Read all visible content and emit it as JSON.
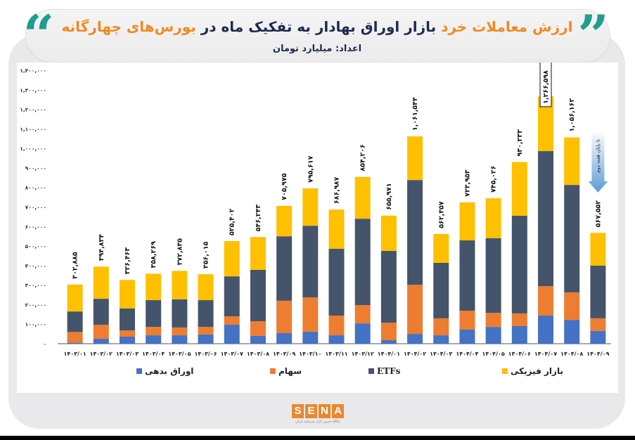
{
  "header": {
    "title_part1": "ارزش معاملات خرد",
    "title_part2": " بازار اوراق بهادار به تفکیک ماه در ",
    "title_part3": "بورس‌های چهارگانه",
    "subtitle": "اعداد: میلیارد تومان",
    "open_quote": "“",
    "close_quote": "”"
  },
  "logo": {
    "letters": [
      "S",
      "E",
      "N",
      "A"
    ],
    "tagline": "پایگاه خبری بازار سرمایه ایران"
  },
  "colors": {
    "debt": "#4472c4",
    "stocks": "#ed7d31",
    "etfs": "#44546a",
    "physical": "#ffc000",
    "teal": "#1f9e8e",
    "orange": "#ef8a22",
    "navy": "#1d2b4f"
  },
  "chart_data": {
    "type": "bar",
    "stacked": true,
    "title": "ارزش معاملات خرد بازار اوراق بهادار به تفکیک ماه در بورس‌های چهارگانه",
    "subtitle": "اعداد: میلیارد تومان",
    "xlabel": "",
    "ylabel": "",
    "ylim": [
      0,
      1400000
    ],
    "yticks": [
      0,
      100000,
      200000,
      300000,
      400000,
      500000,
      600000,
      700000,
      800000,
      900000,
      1000000,
      1100000,
      1200000,
      1300000,
      1400000
    ],
    "ytick_labels": [
      "۰",
      "۱۰۰,۰۰۰",
      "۲۰۰,۰۰۰",
      "۳۰۰,۰۰۰",
      "۴۰۰,۰۰۰",
      "۵۰۰,۰۰۰",
      "۶۰۰,۰۰۰",
      "۷۰۰,۰۰۰",
      "۸۰۰,۰۰۰",
      "۹۰۰,۰۰۰",
      "۱,۰۰۰,۰۰۰",
      "۱,۱۰۰,۰۰۰",
      "۱,۲۰۰,۰۰۰",
      "۱,۳۰۰,۰۰۰",
      "۱,۴۰۰,۰۰۰"
    ],
    "grid": false,
    "legend_position": "bottom",
    "categories": [
      "۱۴۰۳/۰۱",
      "۱۴۰۳/۰۲",
      "۱۴۰۳/۰۳",
      "۱۴۰۳/۰۴",
      "۱۴۰۳/۰۵",
      "۱۴۰۳/۰۶",
      "۱۴۰۳/۰۷",
      "۱۴۰۳/۰۸",
      "۱۴۰۳/۰۹",
      "۱۴۰۳/۱۰",
      "۱۴۰۳/۱۱",
      "۱۴۰۳/۱۲",
      "۱۴۰۴/۰۱",
      "۱۴۰۴/۰۲",
      "۱۴۰۴/۰۳",
      "۱۴۰۴/۰۴",
      "۱۴۰۴/۰۵",
      "۱۴۰۴/۰۶",
      "۱۴۰۴/۰۷",
      "۱۴۰۴/۰۸",
      "۱۴۰۴/۰۹"
    ],
    "series": [
      {
        "name": "اوراق بدهی",
        "key": "debt",
        "values": [
          5000,
          25000,
          36000,
          43000,
          43000,
          47000,
          97000,
          40000,
          54000,
          61000,
          43000,
          104000,
          18000,
          50000,
          43000,
          72000,
          86000,
          90000,
          144000,
          122000,
          65000
        ]
      },
      {
        "name": "سهام",
        "key": "stocks",
        "values": [
          55000,
          72000,
          32000,
          43000,
          40000,
          39000,
          43000,
          75000,
          166000,
          176000,
          101000,
          94000,
          90000,
          252000,
          87000,
          97000,
          72000,
          65000,
          151000,
          141000,
          65000
        ]
      },
      {
        "name": "ETFs",
        "key": "etfs",
        "values": [
          105000,
          133000,
          112000,
          137000,
          144000,
          137000,
          205000,
          263000,
          330000,
          367000,
          342000,
          442000,
          367000,
          536000,
          284000,
          360000,
          382000,
          500000,
          691000,
          550000,
          270000
        ]
      },
      {
        "name": "بازار فیزیکی",
        "key": "physical",
        "values": [
          137885,
          164834,
          146463,
          135269,
          145835,
          133015,
          180402,
          168243,
          155975,
          191617,
          200987,
          214206,
          180971,
          223544,
          148357,
          194953,
          205026,
          275233,
          280598,
          243162,
          167552
        ]
      }
    ],
    "totals": [
      302885,
      394834,
      326463,
      358269,
      372835,
      356015,
      525402,
      546243,
      705975,
      795617,
      686987,
      854206,
      655971,
      1061544,
      562357,
      723953,
      745026,
      930233,
      1266598,
      1056162,
      567552
    ],
    "total_labels": [
      "۳۰۲,۸۸۵",
      "۳۹۴,۸۳۴",
      "۳۲۶,۴۶۳",
      "۳۵۸,۲۶۹",
      "۳۷۲,۸۳۵",
      "۳۵۶,۰۱۵",
      "۵۲۵,۴۰۲",
      "۵۴۶,۲۴۳",
      "۷۰۵,۹۷۵",
      "۷۹۵,۶۱۷",
      "۶۸۶,۹۸۷",
      "۸۵۴,۲۰۶",
      "۶۵۵,۹۷۱",
      "۱,۰۶۱,۵۴۴",
      "۵۶۲,۳۵۷",
      "۷۲۳,۹۵۳",
      "۷۴۵,۰۲۶",
      "۹۳۰,۲۳۳",
      "۱,۲۶۶,۵۹۸",
      "۱,۰۵۶,۱۶۲",
      "۵۶۷,۵۵۲"
    ],
    "highlighted_label_index": 18,
    "annotations": [
      {
        "text": "تا پایان هفته دوم",
        "target_index": 20
      }
    ],
    "legend_order": [
      "debt",
      "stocks",
      "etfs",
      "physical"
    ]
  }
}
